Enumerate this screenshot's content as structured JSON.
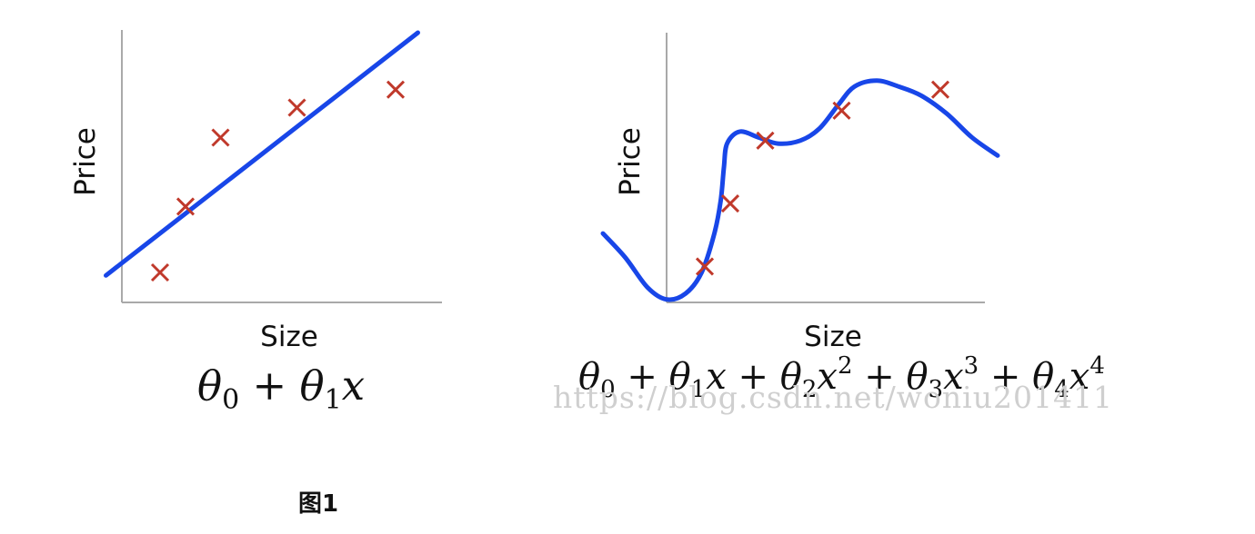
{
  "chart_data": [
    {
      "type": "scatter",
      "title": "",
      "xlabel": "Size",
      "ylabel": "Price",
      "formula": "θ0 + θ1x",
      "points": [
        {
          "x": 1.2,
          "y": 1.0
        },
        {
          "x": 2.0,
          "y": 3.2
        },
        {
          "x": 3.1,
          "y": 5.5
        },
        {
          "x": 5.5,
          "y": 6.5
        },
        {
          "x": 8.6,
          "y": 7.1
        }
      ],
      "fit_line": {
        "degree": 1,
        "x": [
          -0.5,
          9.3
        ],
        "y": [
          0.9,
          9.0
        ]
      },
      "colors": {
        "points": "#c0392b",
        "fit": "#1846e8",
        "axes": "#a9a9a9"
      }
    },
    {
      "type": "scatter",
      "title": "",
      "xlabel": "Size",
      "ylabel": "Price",
      "formula": "θ0 + θ1x + θ2x² + θ3x³ + θ4x⁴",
      "points": [
        {
          "x": 1.2,
          "y": 1.2
        },
        {
          "x": 2.0,
          "y": 3.3
        },
        {
          "x": 3.1,
          "y": 5.4
        },
        {
          "x": 5.5,
          "y": 6.4
        },
        {
          "x": 8.6,
          "y": 7.1
        }
      ],
      "fit_curve": {
        "degree": 4,
        "x": [
          -2.0,
          -1.3,
          -0.6,
          0.0,
          0.6,
          1.1,
          1.5,
          1.7,
          1.8,
          1.9,
          2.3,
          2.9,
          3.5,
          4.2,
          4.8,
          5.4,
          5.9,
          6.6,
          7.3,
          8.0,
          8.8,
          9.6,
          10.4
        ],
        "y": [
          2.3,
          1.5,
          0.5,
          0.1,
          0.3,
          1.0,
          2.3,
          3.4,
          4.5,
          5.3,
          5.7,
          5.5,
          5.3,
          5.4,
          5.8,
          6.6,
          7.2,
          7.4,
          7.2,
          6.9,
          6.3,
          5.5,
          4.9
        ]
      },
      "colors": {
        "points": "#c0392b",
        "fit": "#1846e8",
        "axes": "#a9a9a9"
      }
    }
  ],
  "watermark": "https://blog.csdn.net/woniu201411",
  "caption": "图1"
}
